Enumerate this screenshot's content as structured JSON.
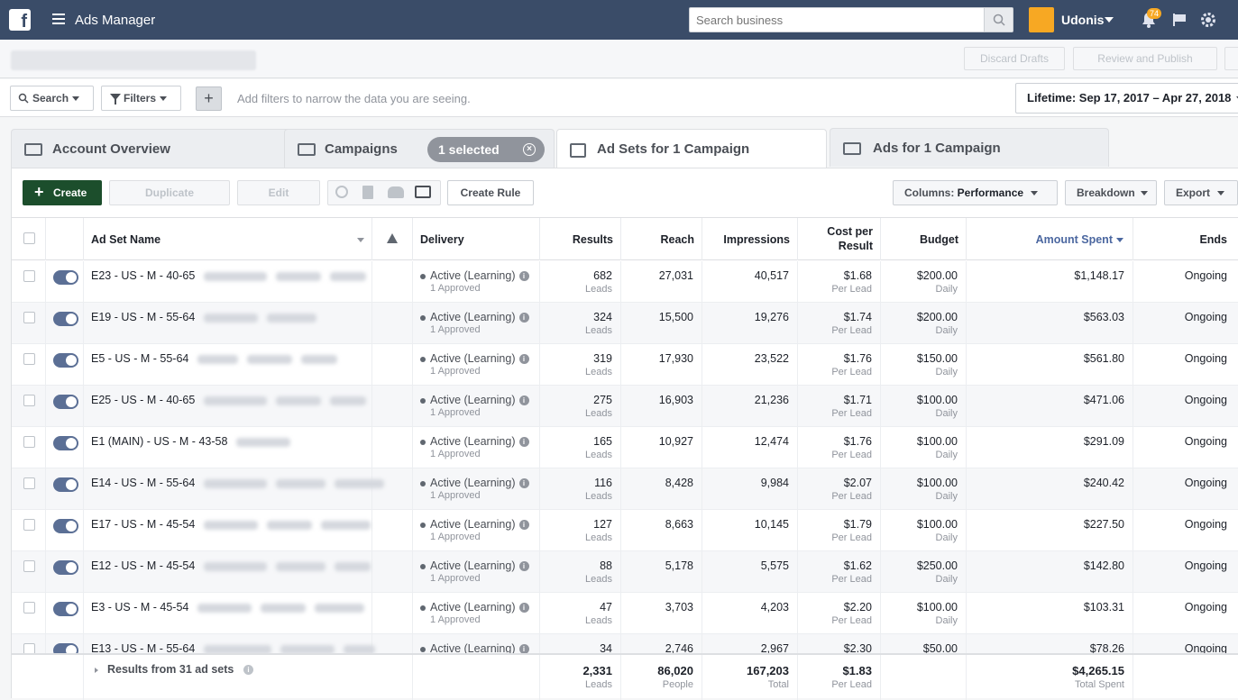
{
  "topbar": {
    "app_title": "Ads Manager",
    "search_placeholder": "Search business",
    "user_name": "Udonis",
    "notification_count": "74"
  },
  "header": {
    "discard_label": "Discard Drafts",
    "review_label": "Review and Publish"
  },
  "filterbar": {
    "search_label": "Search",
    "filters_label": "Filters",
    "add_label": "+",
    "hint": "Add filters to narrow the data you are seeing.",
    "date_range": "Lifetime: Sep 17, 2017 – Apr 27, 2018"
  },
  "tabs": [
    {
      "label": "Account Overview"
    },
    {
      "label": "Campaigns"
    },
    {
      "label": "Ad Sets for 1 Campaign"
    },
    {
      "label": "Ads for 1 Campaign"
    }
  ],
  "selected_pill": "1 selected",
  "toolbar": {
    "create_label": "Create",
    "duplicate_label": "Duplicate",
    "edit_label": "Edit",
    "create_rule_label": "Create Rule",
    "columns_prefix": "Columns: ",
    "columns_value": "Performance",
    "breakdown_label": "Breakdown",
    "export_label": "Export"
  },
  "columns": {
    "name": "Ad Set Name",
    "delivery": "Delivery",
    "results": "Results",
    "reach": "Reach",
    "impressions": "Impressions",
    "cost_line1": "Cost per",
    "cost_line2": "Result",
    "budget": "Budget",
    "amount_spent": "Amount Spent",
    "ends": "Ends"
  },
  "rows": [
    {
      "name": "E23 - US - M - 40-65",
      "delivery": "Active (Learning)",
      "approved": "1 Approved",
      "results": "682",
      "results_sub": "Leads",
      "reach": "27,031",
      "impressions": "40,517",
      "cost": "$1.68",
      "cost_sub": "Per Lead",
      "budget": "$200.00",
      "budget_sub": "Daily",
      "spent": "$1,148.17",
      "ends": "Ongoing"
    },
    {
      "name": "E19 - US - M - 55-64",
      "delivery": "Active (Learning)",
      "approved": "1 Approved",
      "results": "324",
      "results_sub": "Leads",
      "reach": "15,500",
      "impressions": "19,276",
      "cost": "$1.74",
      "cost_sub": "Per Lead",
      "budget": "$200.00",
      "budget_sub": "Daily",
      "spent": "$563.03",
      "ends": "Ongoing"
    },
    {
      "name": "E5 - US - M - 55-64",
      "delivery": "Active (Learning)",
      "approved": "1 Approved",
      "results": "319",
      "results_sub": "Leads",
      "reach": "17,930",
      "impressions": "23,522",
      "cost": "$1.76",
      "cost_sub": "Per Lead",
      "budget": "$150.00",
      "budget_sub": "Daily",
      "spent": "$561.80",
      "ends": "Ongoing"
    },
    {
      "name": "E25 - US - M - 40-65",
      "delivery": "Active (Learning)",
      "approved": "1 Approved",
      "results": "275",
      "results_sub": "Leads",
      "reach": "16,903",
      "impressions": "21,236",
      "cost": "$1.71",
      "cost_sub": "Per Lead",
      "budget": "$100.00",
      "budget_sub": "Daily",
      "spent": "$471.06",
      "ends": "Ongoing"
    },
    {
      "name": "E1 (MAIN) - US - M - 43-58",
      "delivery": "Active (Learning)",
      "approved": "1 Approved",
      "results": "165",
      "results_sub": "Leads",
      "reach": "10,927",
      "impressions": "12,474",
      "cost": "$1.76",
      "cost_sub": "Per Lead",
      "budget": "$100.00",
      "budget_sub": "Daily",
      "spent": "$291.09",
      "ends": "Ongoing"
    },
    {
      "name": "E14 - US - M - 55-64",
      "delivery": "Active (Learning)",
      "approved": "1 Approved",
      "results": "116",
      "results_sub": "Leads",
      "reach": "8,428",
      "impressions": "9,984",
      "cost": "$2.07",
      "cost_sub": "Per Lead",
      "budget": "$100.00",
      "budget_sub": "Daily",
      "spent": "$240.42",
      "ends": "Ongoing"
    },
    {
      "name": "E17 - US - M - 45-54",
      "delivery": "Active (Learning)",
      "approved": "1 Approved",
      "results": "127",
      "results_sub": "Leads",
      "reach": "8,663",
      "impressions": "10,145",
      "cost": "$1.79",
      "cost_sub": "Per Lead",
      "budget": "$100.00",
      "budget_sub": "Daily",
      "spent": "$227.50",
      "ends": "Ongoing"
    },
    {
      "name": "E12 - US - M - 45-54",
      "delivery": "Active (Learning)",
      "approved": "1 Approved",
      "results": "88",
      "results_sub": "Leads",
      "reach": "5,178",
      "impressions": "5,575",
      "cost": "$1.62",
      "cost_sub": "Per Lead",
      "budget": "$250.00",
      "budget_sub": "Daily",
      "spent": "$142.80",
      "ends": "Ongoing"
    },
    {
      "name": "E3 - US - M - 45-54",
      "delivery": "Active (Learning)",
      "approved": "1 Approved",
      "results": "47",
      "results_sub": "Leads",
      "reach": "3,703",
      "impressions": "4,203",
      "cost": "$2.20",
      "cost_sub": "Per Lead",
      "budget": "$100.00",
      "budget_sub": "Daily",
      "spent": "$103.31",
      "ends": "Ongoing"
    },
    {
      "name": "E13 - US - M - 55-64",
      "delivery": "Active (Learning)",
      "approved": "",
      "results": "34",
      "results_sub": "",
      "reach": "2,746",
      "impressions": "2,967",
      "cost": "$2.30",
      "cost_sub": "",
      "budget": "$50.00",
      "budget_sub": "",
      "spent": "$78.26",
      "ends": "Ongoing"
    }
  ],
  "footer": {
    "label": "Results from 31 ad sets",
    "results": "2,331",
    "results_sub": "Leads",
    "reach": "86,020",
    "reach_sub": "People",
    "impressions": "167,203",
    "impressions_sub": "Total",
    "cost": "$1.83",
    "cost_sub": "Per Lead",
    "spent": "$4,265.15",
    "spent_sub": "Total Spent"
  },
  "colors": {
    "topbar": "#3a4c68",
    "accent": "#4b67a0",
    "create": "#1c4e2c",
    "badge": "#f7a823"
  }
}
